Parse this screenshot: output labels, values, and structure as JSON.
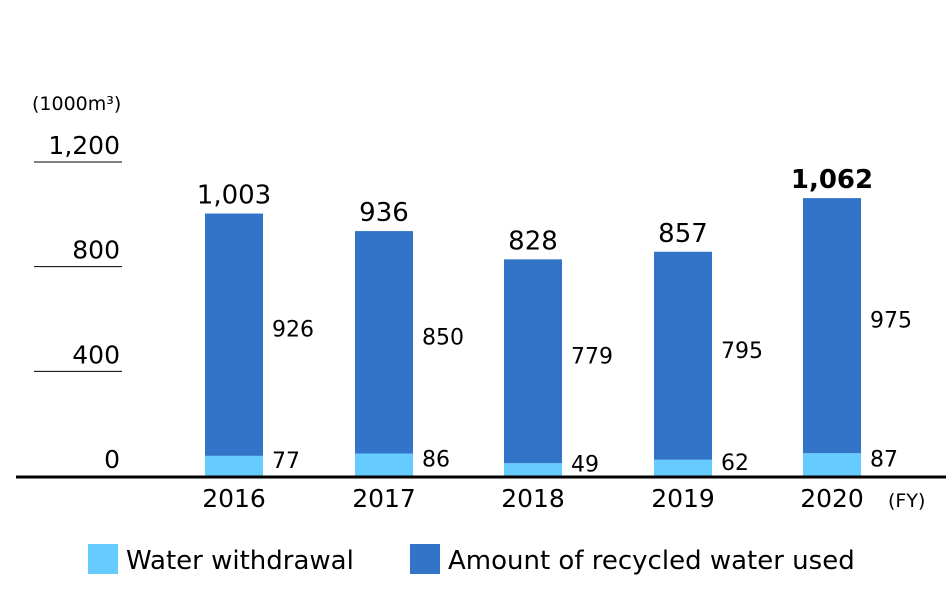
{
  "chart_data": {
    "type": "bar",
    "stacked": true,
    "unit_label": "(1000m³)",
    "x_unit_label": "(FY)",
    "categories": [
      "2016",
      "2017",
      "2018",
      "2019",
      "2020"
    ],
    "series": [
      {
        "name": "Water withdrawal",
        "values": [
          77,
          86,
          49,
          62,
          87
        ],
        "color": "#66ccff"
      },
      {
        "name": "Amount of recycled water used",
        "values": [
          926,
          850,
          779,
          795,
          975
        ],
        "color": "#3174c8"
      }
    ],
    "totals": [
      1003,
      936,
      828,
      857,
      1062
    ],
    "total_labels": [
      "1,003",
      "936",
      "828",
      "857",
      "1,062"
    ],
    "bold_total_index": 4,
    "yticks": [
      0,
      400,
      800,
      1200
    ],
    "ytick_labels": [
      "0",
      "400",
      "800",
      "1,200"
    ],
    "ylim": [
      0,
      1200
    ],
    "legend_position": "bottom"
  }
}
